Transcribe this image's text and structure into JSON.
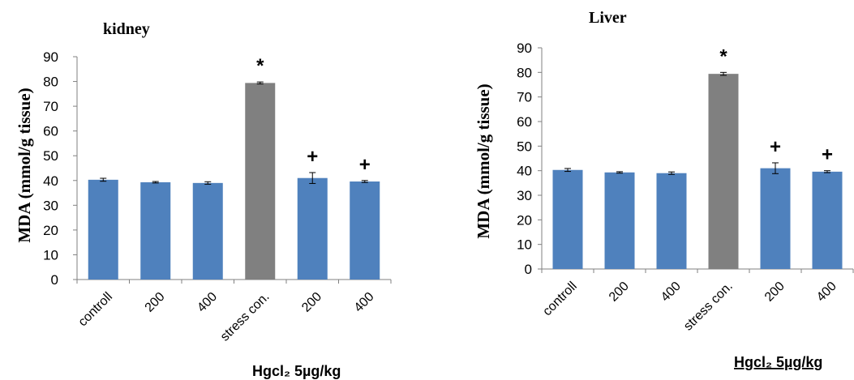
{
  "chart_data": [
    {
      "type": "bar",
      "title": "kidney",
      "ylabel": "MDA (mmol/g tissue)",
      "xlabel": "",
      "ylim": [
        0,
        90
      ],
      "yticks": [
        "0",
        "10",
        "20",
        "30",
        "40",
        "50",
        "60",
        "70",
        "80",
        "90"
      ],
      "categories": [
        "controll",
        "200",
        "400",
        "stress con.",
        "200",
        "400"
      ],
      "values": [
        40.3,
        39.3,
        39.0,
        79.4,
        41.0,
        39.6
      ],
      "errors": [
        0.6,
        0.3,
        0.5,
        0.4,
        2.2,
        0.4
      ],
      "markers": [
        "",
        "",
        "",
        "*",
        "+",
        "+"
      ],
      "bar_colors": [
        "#4F81BD",
        "#4F81BD",
        "#4F81BD",
        "#808080",
        "#4F81BD",
        "#4F81BD"
      ],
      "group_label": "Hgcl₂  5µg/kg",
      "grid": false
    },
    {
      "type": "bar",
      "title": "Liver",
      "ylabel": "MDA (mmol/g tissue)",
      "xlabel": "",
      "ylim": [
        0,
        90
      ],
      "yticks": [
        "0",
        "10",
        "20",
        "30",
        "40",
        "50",
        "60",
        "70",
        "80",
        "90"
      ],
      "categories": [
        "controll",
        "200",
        "400",
        "stress con.",
        "200",
        "400"
      ],
      "values": [
        40.3,
        39.3,
        39.0,
        79.4,
        41.0,
        39.6
      ],
      "errors": [
        0.6,
        0.3,
        0.5,
        0.6,
        2.2,
        0.4
      ],
      "markers": [
        "",
        "",
        "",
        "*",
        "+",
        "+"
      ],
      "bar_colors": [
        "#4F81BD",
        "#4F81BD",
        "#4F81BD",
        "#808080",
        "#4F81BD",
        "#4F81BD"
      ],
      "group_label": "Hgcl₂  5µg/kg",
      "grid": false
    }
  ]
}
